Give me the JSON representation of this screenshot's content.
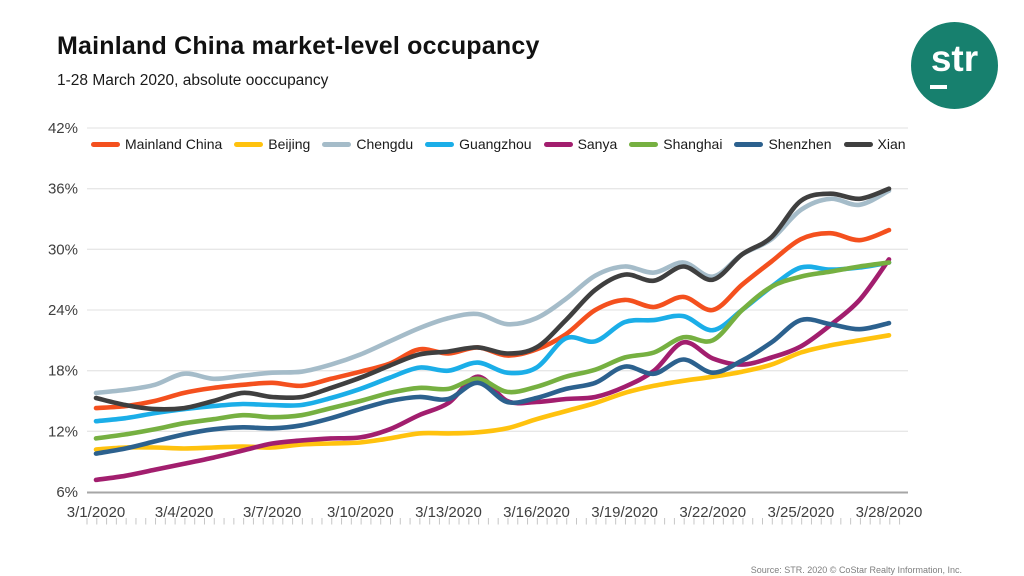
{
  "header": {
    "title": "Mainland China market-level occupancy",
    "subtitle": "1-28 March 2020, absolute ooccupancy",
    "logo_text": "str"
  },
  "footer": {
    "source": "Source: STR. 2020 © CoStar Realty Information, Inc."
  },
  "theme": {
    "logo_teal": "#17806E",
    "grid_color": "#E7E7E7",
    "axis_color": "#A6A6A6",
    "tick_color": "#C6C6C6",
    "label_color": "#3F3F3F"
  },
  "chart_data": {
    "type": "line",
    "title": "Mainland China market-level occupancy",
    "subtitle": "1-28 March 2020, absolute ooccupancy",
    "xlabel": "",
    "ylabel": "",
    "ylim": [
      6,
      42
    ],
    "ytick_values": [
      6,
      12,
      18,
      24,
      30,
      36,
      42
    ],
    "ytick_labels": [
      "6%",
      "12%",
      "18%",
      "24%",
      "30%",
      "36%",
      "42%"
    ],
    "grid": true,
    "legend_position": "top",
    "categories": [
      "3/1/2020",
      "3/2/2020",
      "3/3/2020",
      "3/4/2020",
      "3/5/2020",
      "3/6/2020",
      "3/7/2020",
      "3/8/2020",
      "3/9/2020",
      "3/10/2020",
      "3/11/2020",
      "3/12/2020",
      "3/13/2020",
      "3/14/2020",
      "3/15/2020",
      "3/16/2020",
      "3/17/2020",
      "3/18/2020",
      "3/19/2020",
      "3/20/2020",
      "3/21/2020",
      "3/22/2020",
      "3/23/2020",
      "3/24/2020",
      "3/25/2020",
      "3/26/2020",
      "3/27/2020",
      "3/28/2020"
    ],
    "x_tick_labels": [
      "3/1/2020",
      "3/4/2020",
      "3/7/2020",
      "3/10/2020",
      "3/13/2020",
      "3/16/2020",
      "3/19/2020",
      "3/22/2020",
      "3/25/2020",
      "3/28/2020"
    ],
    "series": [
      {
        "name": "Mainland China",
        "color": "#F4501E",
        "values": [
          14.3,
          14.5,
          15.0,
          15.8,
          16.3,
          16.6,
          16.8,
          16.5,
          17.2,
          17.9,
          18.7,
          20.1,
          19.7,
          20.3,
          19.5,
          20.1,
          21.6,
          24.0,
          25.0,
          24.3,
          25.3,
          24.0,
          26.5,
          28.8,
          31.0,
          31.6,
          30.9,
          31.9
        ]
      },
      {
        "name": "Beijing",
        "color": "#FFC20E",
        "values": [
          10.2,
          10.4,
          10.4,
          10.3,
          10.4,
          10.5,
          10.4,
          10.7,
          10.8,
          10.9,
          11.3,
          11.8,
          11.8,
          11.9,
          12.3,
          13.2,
          14.0,
          14.8,
          15.8,
          16.5,
          17.0,
          17.4,
          17.9,
          18.6,
          19.8,
          20.5,
          21.0,
          21.5
        ]
      },
      {
        "name": "Chengdu",
        "color": "#A5BCC9",
        "values": [
          15.8,
          16.1,
          16.6,
          17.7,
          17.2,
          17.5,
          17.8,
          17.9,
          18.6,
          19.6,
          20.9,
          22.2,
          23.2,
          23.6,
          22.6,
          23.2,
          25.1,
          27.4,
          28.3,
          27.7,
          28.7,
          27.3,
          29.5,
          31.0,
          33.9,
          35.0,
          34.4,
          35.8
        ]
      },
      {
        "name": "Guangzhou",
        "color": "#1BAEE8",
        "values": [
          13.0,
          13.3,
          13.8,
          14.2,
          14.5,
          14.7,
          14.6,
          14.6,
          15.3,
          16.2,
          17.3,
          18.3,
          18.0,
          18.8,
          17.8,
          18.3,
          21.2,
          20.9,
          22.8,
          23.0,
          23.4,
          22.0,
          24.0,
          26.3,
          28.2,
          28.0,
          28.2,
          28.7
        ]
      },
      {
        "name": "Sanya",
        "color": "#A21E6E",
        "values": [
          7.2,
          7.6,
          8.2,
          8.8,
          9.4,
          10.1,
          10.8,
          11.1,
          11.3,
          11.4,
          12.2,
          13.6,
          14.8,
          17.4,
          15.0,
          14.9,
          15.2,
          15.4,
          16.4,
          18.0,
          20.8,
          19.2,
          18.6,
          19.3,
          20.4,
          22.5,
          25.0,
          29.0
        ]
      },
      {
        "name": "Shanghai",
        "color": "#76B041",
        "values": [
          11.3,
          11.7,
          12.2,
          12.8,
          13.2,
          13.6,
          13.4,
          13.6,
          14.3,
          15.0,
          15.8,
          16.3,
          16.2,
          17.2,
          15.9,
          16.4,
          17.4,
          18.1,
          19.3,
          19.8,
          21.3,
          21.0,
          24.0,
          26.3,
          27.3,
          27.8,
          28.3,
          28.7
        ]
      },
      {
        "name": "Shenzhen",
        "color": "#2C618E",
        "values": [
          9.8,
          10.3,
          11.0,
          11.7,
          12.2,
          12.4,
          12.3,
          12.6,
          13.3,
          14.2,
          15.0,
          15.4,
          15.2,
          16.8,
          14.9,
          15.3,
          16.2,
          16.8,
          18.4,
          17.7,
          19.1,
          17.8,
          19.0,
          20.8,
          23.0,
          22.6,
          22.1,
          22.7
        ]
      },
      {
        "name": "Xian",
        "color": "#3F3F3F",
        "values": [
          15.3,
          14.6,
          14.2,
          14.3,
          15.0,
          15.8,
          15.4,
          15.4,
          16.3,
          17.3,
          18.5,
          19.6,
          19.9,
          20.3,
          19.7,
          20.3,
          23.0,
          26.0,
          27.5,
          26.9,
          28.3,
          27.0,
          29.5,
          31.2,
          34.8,
          35.5,
          35.0,
          36.0
        ]
      }
    ]
  }
}
